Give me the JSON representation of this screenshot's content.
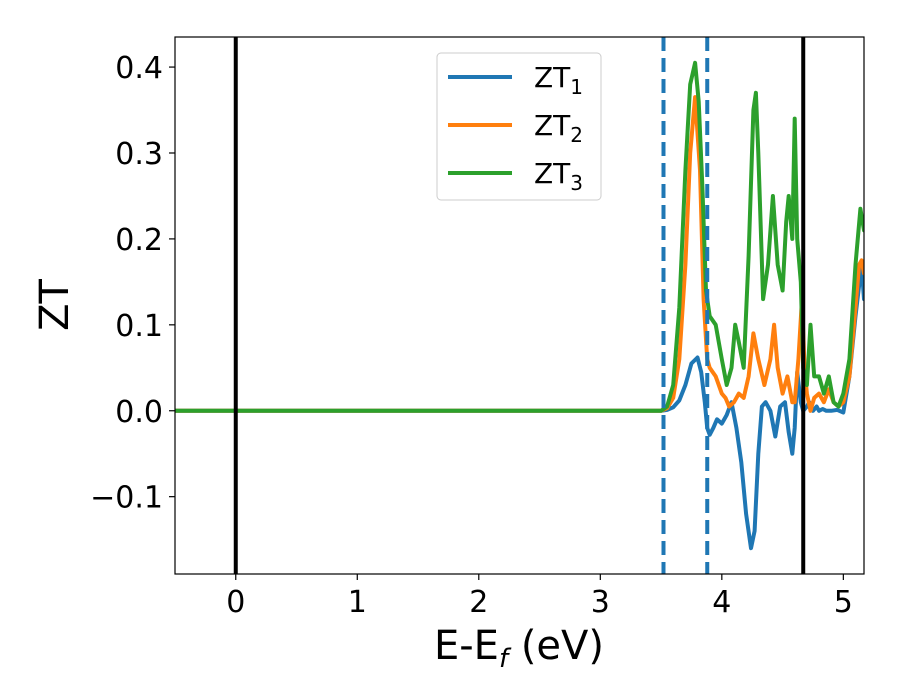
{
  "chart_data": {
    "type": "line",
    "title": "",
    "xlabel": "E-E",
    "xlabel_sub": "f",
    "xlabel_unit": " (eV)",
    "ylabel": "ZT",
    "xlim": [
      -0.5,
      5.17
    ],
    "ylim": [
      -0.19,
      0.435
    ],
    "xticks": [
      0,
      1,
      2,
      3,
      4,
      5
    ],
    "xtick_labels": [
      "0",
      "1",
      "2",
      "3",
      "4",
      "5"
    ],
    "yticks": [
      -0.1,
      0.0,
      0.1,
      0.2,
      0.3,
      0.4
    ],
    "ytick_labels": [
      "−0.1",
      "0.0",
      "0.1",
      "0.2",
      "0.3",
      "0.4"
    ],
    "grid": false,
    "legend_placement": "top-center",
    "vertical_lines": [
      {
        "x": 0.0,
        "style": "solid",
        "color": "#000000"
      },
      {
        "x": 4.67,
        "style": "solid",
        "color": "#000000"
      },
      {
        "x": 3.52,
        "style": "dashed",
        "color": "#1f77b4"
      },
      {
        "x": 3.88,
        "style": "dashed",
        "color": "#1f77b4"
      }
    ],
    "series": [
      {
        "name": "ZT",
        "name_sub": "1",
        "color": "#1f77b4",
        "x": [
          -0.5,
          3.5,
          3.55,
          3.6,
          3.65,
          3.7,
          3.75,
          3.8,
          3.83,
          3.86,
          3.88,
          3.9,
          3.93,
          3.96,
          4.0,
          4.04,
          4.08,
          4.12,
          4.16,
          4.2,
          4.24,
          4.27,
          4.3,
          4.33,
          4.36,
          4.4,
          4.44,
          4.48,
          4.52,
          4.55,
          4.58,
          4.6,
          4.62,
          4.65,
          4.67,
          4.7,
          4.72,
          4.75,
          4.78,
          4.8,
          4.83,
          4.86,
          4.9,
          4.95,
          5.0,
          5.05,
          5.1,
          5.15,
          5.17
        ],
        "y": [
          0.0,
          0.0,
          0.001,
          0.004,
          0.012,
          0.03,
          0.055,
          0.062,
          0.045,
          0.01,
          -0.02,
          -0.028,
          -0.02,
          -0.01,
          -0.015,
          -0.005,
          0.01,
          -0.02,
          -0.06,
          -0.12,
          -0.16,
          -0.14,
          -0.05,
          0.005,
          0.01,
          0.0,
          -0.03,
          0.005,
          0.01,
          -0.025,
          -0.05,
          -0.02,
          0.045,
          0.01,
          0.0,
          0.005,
          0.01,
          0.0,
          0.005,
          0.0,
          0.002,
          0.0,
          0.0,
          0.001,
          -0.002,
          0.04,
          0.11,
          0.17,
          0.13
        ]
      },
      {
        "name": "ZT",
        "name_sub": "2",
        "color": "#ff7f0e",
        "x": [
          -0.5,
          3.5,
          3.55,
          3.6,
          3.65,
          3.7,
          3.74,
          3.78,
          3.82,
          3.85,
          3.88,
          3.9,
          3.95,
          4.0,
          4.03,
          4.06,
          4.1,
          4.14,
          4.18,
          4.22,
          4.26,
          4.3,
          4.35,
          4.4,
          4.43,
          4.46,
          4.5,
          4.54,
          4.58,
          4.6,
          4.63,
          4.66,
          4.68,
          4.7,
          4.73,
          4.76,
          4.8,
          4.84,
          4.88,
          4.92,
          4.96,
          5.0,
          5.05,
          5.1,
          5.13,
          5.15,
          5.17
        ],
        "y": [
          0.0,
          0.0,
          0.003,
          0.015,
          0.06,
          0.17,
          0.3,
          0.365,
          0.28,
          0.13,
          0.06,
          0.05,
          0.04,
          0.02,
          0.015,
          0.005,
          0.01,
          0.02,
          0.015,
          0.04,
          0.09,
          0.06,
          0.03,
          0.06,
          0.1,
          0.05,
          0.02,
          0.04,
          0.01,
          0.01,
          0.06,
          0.13,
          0.05,
          0.02,
          0.0,
          0.015,
          0.02,
          0.01,
          0.025,
          0.01,
          0.005,
          0.01,
          0.04,
          0.12,
          0.17,
          0.175,
          0.16
        ]
      },
      {
        "name": "ZT",
        "name_sub": "3",
        "color": "#2ca02c",
        "x": [
          -0.5,
          3.5,
          3.55,
          3.6,
          3.65,
          3.7,
          3.74,
          3.78,
          3.81,
          3.84,
          3.87,
          3.9,
          3.95,
          4.0,
          4.04,
          4.08,
          4.11,
          4.14,
          4.18,
          4.22,
          4.26,
          4.28,
          4.3,
          4.34,
          4.38,
          4.42,
          4.46,
          4.5,
          4.53,
          4.55,
          4.58,
          4.6,
          4.62,
          4.65,
          4.67,
          4.7,
          4.73,
          4.76,
          4.8,
          4.84,
          4.88,
          4.92,
          4.96,
          5.0,
          5.05,
          5.1,
          5.14,
          5.17
        ],
        "y": [
          0.0,
          0.0,
          0.005,
          0.03,
          0.12,
          0.28,
          0.38,
          0.405,
          0.36,
          0.26,
          0.14,
          0.11,
          0.1,
          0.06,
          0.03,
          0.05,
          0.1,
          0.08,
          0.05,
          0.18,
          0.35,
          0.37,
          0.3,
          0.13,
          0.17,
          0.25,
          0.17,
          0.14,
          0.22,
          0.25,
          0.2,
          0.34,
          0.2,
          0.15,
          0.05,
          0.03,
          0.1,
          0.04,
          0.04,
          0.02,
          0.04,
          0.01,
          0.005,
          0.02,
          0.06,
          0.17,
          0.235,
          0.21
        ]
      }
    ]
  }
}
